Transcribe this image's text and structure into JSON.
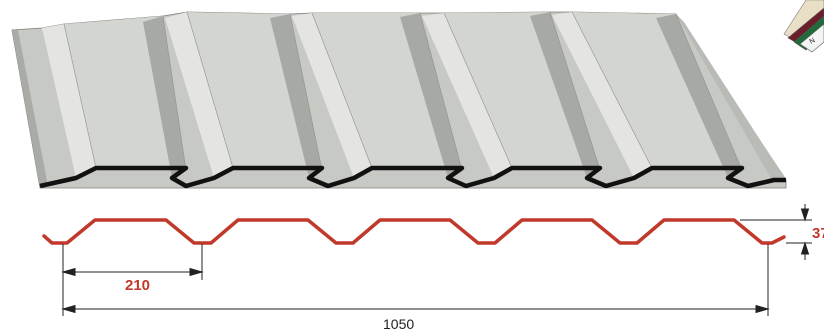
{
  "dimensions": {
    "pitch": "210",
    "total_width": "1050",
    "height": "37"
  },
  "swatch": {
    "label": "N"
  },
  "colors": {
    "accent": "#c0392b",
    "sheet_light": "#d3d5d1",
    "sheet_mid": "#c2c4bf",
    "sheet_dark": "#9ea09b",
    "sheet_edge": "#111111",
    "dimension_line": "#222222"
  }
}
